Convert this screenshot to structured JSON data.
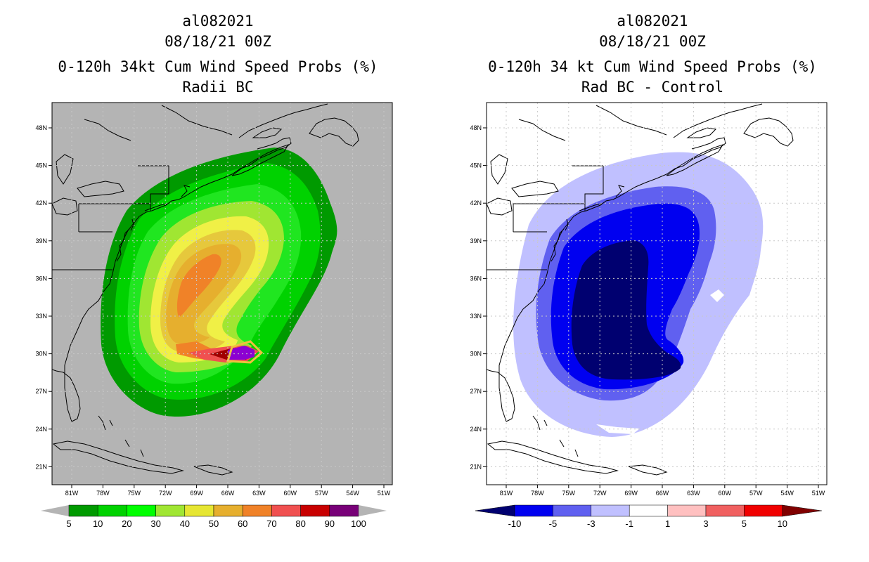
{
  "left_panel": {
    "storm_id": "al082021",
    "datetime": "08/18/21 00Z",
    "product": "0-120h 34kt Cum Wind Speed Probs (%)",
    "subtitle": "Radii BC",
    "legend": {
      "labels": [
        "5",
        "10",
        "20",
        "30",
        "40",
        "50",
        "60",
        "70",
        "80",
        "90",
        "100"
      ],
      "colors": [
        "#009a00",
        "#00d200",
        "#00ff00",
        "#a0e632",
        "#e6e632",
        "#e6af2e",
        "#f08228",
        "#f05050",
        "#c80000",
        "#780078",
        "#8c00ff"
      ]
    },
    "contour_colors": {
      "5": "#009a00",
      "10": "#00d200",
      "20": "#20e620",
      "30": "#a0e632",
      "40": "#f0f046",
      "50": "#e6c83c",
      "60": "#e6af2e",
      "70": "#f08228",
      "80": "#f05050",
      "90": "#a00000",
      "100": "#8c00d2"
    }
  },
  "right_panel": {
    "storm_id": "al082021",
    "datetime": "08/18/21 00Z",
    "product": "0-120h 34 kt Cum Wind Speed Probs (%)",
    "subtitle": "Rad BC - Control",
    "legend": {
      "labels": [
        "-10",
        "-5",
        "-3",
        "-1",
        "1",
        "3",
        "5",
        "10"
      ],
      "colors": [
        "#000070",
        "#0000f0",
        "#6060f0",
        "#c0c0ff",
        "#ffffff",
        "#ffc0c0",
        "#f06060",
        "#f00000",
        "#800000"
      ]
    }
  },
  "map": {
    "lat_labels": [
      "48N",
      "45N",
      "42N",
      "39N",
      "36N",
      "33N",
      "30N",
      "27N",
      "24N",
      "21N"
    ],
    "lon_labels": [
      "81W",
      "78W",
      "75W",
      "72W",
      "69W",
      "66W",
      "63W",
      "60W",
      "57W",
      "54W",
      "51W"
    ]
  }
}
